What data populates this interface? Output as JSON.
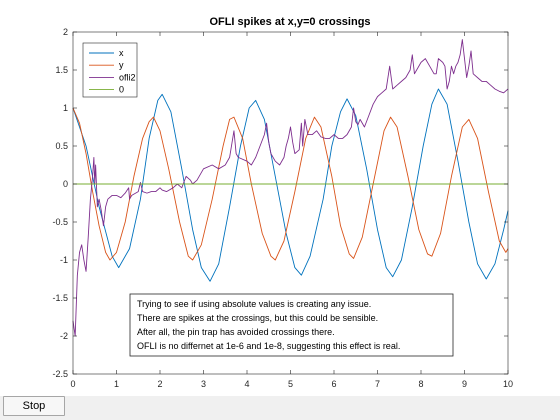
{
  "window": {
    "stop_label": "Stop"
  },
  "chart_data": {
    "type": "line",
    "title": "OFLI spikes at x,y=0 crossings",
    "xlabel": "",
    "ylabel": "",
    "xlim": [
      0,
      10
    ],
    "ylim": [
      -2.5,
      2
    ],
    "xticks": [
      0,
      1,
      2,
      3,
      4,
      5,
      6,
      7,
      8,
      9,
      10
    ],
    "yticks": [
      -2.5,
      -2,
      -1.5,
      -1,
      -0.5,
      0,
      0.5,
      1,
      1.5,
      2
    ],
    "xtick_labels": [
      "0",
      "1",
      "2",
      "3",
      "4",
      "5",
      "6",
      "7",
      "8",
      "9",
      "10"
    ],
    "ytick_labels": [
      "-2.5",
      "-2",
      "-1.5",
      "-1",
      "-0.5",
      "0",
      "0.5",
      "1",
      "1.5",
      "2"
    ],
    "grid": false,
    "legend_position": "top-left",
    "series": [
      {
        "name": "x",
        "color": "#0072bd",
        "points": [
          [
            0,
            1.0
          ],
          [
            0.3,
            0.5
          ],
          [
            0.6,
            -0.3
          ],
          [
            0.9,
            -0.95
          ],
          [
            1.05,
            -1.1
          ],
          [
            1.3,
            -0.85
          ],
          [
            1.55,
            -0.2
          ],
          [
            1.75,
            0.6
          ],
          [
            1.95,
            1.1
          ],
          [
            2.05,
            1.18
          ],
          [
            2.25,
            0.95
          ],
          [
            2.5,
            0.2
          ],
          [
            2.75,
            -0.6
          ],
          [
            2.95,
            -1.1
          ],
          [
            3.15,
            -1.28
          ],
          [
            3.35,
            -1.05
          ],
          [
            3.6,
            -0.3
          ],
          [
            3.85,
            0.5
          ],
          [
            4.05,
            1.0
          ],
          [
            4.2,
            1.1
          ],
          [
            4.4,
            0.85
          ],
          [
            4.65,
            0.1
          ],
          [
            4.9,
            -0.65
          ],
          [
            5.1,
            -1.1
          ],
          [
            5.25,
            -1.2
          ],
          [
            5.45,
            -0.95
          ],
          [
            5.75,
            -0.2
          ],
          [
            5.95,
            0.5
          ],
          [
            6.15,
            0.95
          ],
          [
            6.3,
            1.12
          ],
          [
            6.5,
            0.9
          ],
          [
            6.75,
            0.2
          ],
          [
            7.0,
            -0.6
          ],
          [
            7.2,
            -1.1
          ],
          [
            7.35,
            -1.22
          ],
          [
            7.55,
            -1.0
          ],
          [
            7.8,
            -0.3
          ],
          [
            8.05,
            0.5
          ],
          [
            8.25,
            1.05
          ],
          [
            8.4,
            1.25
          ],
          [
            8.6,
            1.05
          ],
          [
            8.85,
            0.3
          ],
          [
            9.1,
            -0.5
          ],
          [
            9.3,
            -1.05
          ],
          [
            9.5,
            -1.25
          ],
          [
            9.7,
            -1.05
          ],
          [
            9.9,
            -0.6
          ],
          [
            10,
            -0.35
          ]
        ]
      },
      {
        "name": "y",
        "color": "#d95319",
        "points": [
          [
            0,
            1.0
          ],
          [
            0.15,
            0.8
          ],
          [
            0.3,
            0.4
          ],
          [
            0.45,
            -0.1
          ],
          [
            0.6,
            -0.55
          ],
          [
            0.75,
            -0.9
          ],
          [
            0.85,
            -1.0
          ],
          [
            1.0,
            -0.9
          ],
          [
            1.2,
            -0.5
          ],
          [
            1.4,
            0.1
          ],
          [
            1.6,
            0.6
          ],
          [
            1.75,
            0.82
          ],
          [
            1.85,
            0.88
          ],
          [
            2.0,
            0.7
          ],
          [
            2.2,
            0.2
          ],
          [
            2.45,
            -0.5
          ],
          [
            2.65,
            -0.95
          ],
          [
            2.75,
            -1.0
          ],
          [
            2.95,
            -0.8
          ],
          [
            3.2,
            -0.2
          ],
          [
            3.45,
            0.5
          ],
          [
            3.6,
            0.85
          ],
          [
            3.7,
            0.88
          ],
          [
            3.9,
            0.6
          ],
          [
            4.1,
            0.0
          ],
          [
            4.35,
            -0.65
          ],
          [
            4.55,
            -0.95
          ],
          [
            4.65,
            -1.0
          ],
          [
            4.85,
            -0.75
          ],
          [
            5.1,
            -0.1
          ],
          [
            5.35,
            0.6
          ],
          [
            5.55,
            0.88
          ],
          [
            5.7,
            0.75
          ],
          [
            5.95,
            0.1
          ],
          [
            6.15,
            -0.55
          ],
          [
            6.35,
            -0.92
          ],
          [
            6.45,
            -0.98
          ],
          [
            6.65,
            -0.7
          ],
          [
            6.9,
            0.0
          ],
          [
            7.15,
            0.7
          ],
          [
            7.3,
            0.88
          ],
          [
            7.45,
            0.75
          ],
          [
            7.7,
            0.1
          ],
          [
            7.95,
            -0.6
          ],
          [
            8.15,
            -0.92
          ],
          [
            8.25,
            -0.95
          ],
          [
            8.45,
            -0.65
          ],
          [
            8.7,
            0.1
          ],
          [
            8.95,
            0.75
          ],
          [
            9.1,
            0.85
          ],
          [
            9.3,
            0.6
          ],
          [
            9.55,
            -0.1
          ],
          [
            9.8,
            -0.75
          ],
          [
            9.95,
            -0.9
          ],
          [
            10,
            -0.85
          ]
        ]
      },
      {
        "name": "ofli2",
        "color": "#7e2f8e",
        "points": [
          [
            0,
            -1.8
          ],
          [
            0.05,
            -2.0
          ],
          [
            0.1,
            -1.2
          ],
          [
            0.15,
            -0.9
          ],
          [
            0.2,
            -0.8
          ],
          [
            0.25,
            -1.0
          ],
          [
            0.3,
            -1.15
          ],
          [
            0.35,
            -0.7
          ],
          [
            0.4,
            -0.2
          ],
          [
            0.45,
            0.1
          ],
          [
            0.48,
            0.35
          ],
          [
            0.5,
            0.0
          ],
          [
            0.52,
            0.25
          ],
          [
            0.56,
            -0.3
          ],
          [
            0.6,
            -0.2
          ],
          [
            0.65,
            -0.35
          ],
          [
            0.7,
            -0.55
          ],
          [
            0.75,
            -0.3
          ],
          [
            0.8,
            -0.2
          ],
          [
            0.9,
            -0.15
          ],
          [
            1.0,
            -0.15
          ],
          [
            1.1,
            -0.18
          ],
          [
            1.2,
            -0.12
          ],
          [
            1.28,
            -0.05
          ],
          [
            1.3,
            -0.2
          ],
          [
            1.35,
            -0.15
          ],
          [
            1.5,
            -0.1
          ],
          [
            1.55,
            0.02
          ],
          [
            1.6,
            -0.1
          ],
          [
            1.7,
            -0.12
          ],
          [
            1.8,
            -0.1
          ],
          [
            1.9,
            -0.1
          ],
          [
            2.0,
            -0.05
          ],
          [
            2.05,
            -0.08
          ],
          [
            2.15,
            -0.1
          ],
          [
            2.3,
            -0.05
          ],
          [
            2.4,
            0.0
          ],
          [
            2.5,
            -0.05
          ],
          [
            2.6,
            0.1
          ],
          [
            2.7,
            0.05
          ],
          [
            2.75,
            0.0
          ],
          [
            2.85,
            0.05
          ],
          [
            3.0,
            0.2
          ],
          [
            3.2,
            0.25
          ],
          [
            3.35,
            0.2
          ],
          [
            3.5,
            0.25
          ],
          [
            3.6,
            0.35
          ],
          [
            3.7,
            0.7
          ],
          [
            3.75,
            0.4
          ],
          [
            3.8,
            0.35
          ],
          [
            4.0,
            0.3
          ],
          [
            4.1,
            0.25
          ],
          [
            4.2,
            0.35
          ],
          [
            4.3,
            0.5
          ],
          [
            4.4,
            0.65
          ],
          [
            4.45,
            0.8
          ],
          [
            4.5,
            0.55
          ],
          [
            4.55,
            0.4
          ],
          [
            4.65,
            0.3
          ],
          [
            4.75,
            0.25
          ],
          [
            4.85,
            0.35
          ],
          [
            4.9,
            0.5
          ],
          [
            4.95,
            0.6
          ],
          [
            5.0,
            0.75
          ],
          [
            5.05,
            0.55
          ],
          [
            5.1,
            0.4
          ],
          [
            5.2,
            0.45
          ],
          [
            5.25,
            0.8
          ],
          [
            5.28,
            0.5
          ],
          [
            5.33,
            0.85
          ],
          [
            5.4,
            0.65
          ],
          [
            5.5,
            0.65
          ],
          [
            5.6,
            0.7
          ],
          [
            5.7,
            0.62
          ],
          [
            5.8,
            0.6
          ],
          [
            5.9,
            0.6
          ],
          [
            6.0,
            0.65
          ],
          [
            6.1,
            0.6
          ],
          [
            6.2,
            0.6
          ],
          [
            6.3,
            0.65
          ],
          [
            6.4,
            0.75
          ],
          [
            6.45,
            1.0
          ],
          [
            6.5,
            0.82
          ],
          [
            6.55,
            0.78
          ],
          [
            6.6,
            0.85
          ],
          [
            6.7,
            0.75
          ],
          [
            6.8,
            0.9
          ],
          [
            6.9,
            1.05
          ],
          [
            7.0,
            1.15
          ],
          [
            7.1,
            1.2
          ],
          [
            7.2,
            1.25
          ],
          [
            7.28,
            1.55
          ],
          [
            7.35,
            1.25
          ],
          [
            7.45,
            1.3
          ],
          [
            7.55,
            1.35
          ],
          [
            7.65,
            1.4
          ],
          [
            7.75,
            1.5
          ],
          [
            7.8,
            1.7
          ],
          [
            7.85,
            1.45
          ],
          [
            7.9,
            1.5
          ],
          [
            8.0,
            1.6
          ],
          [
            8.1,
            1.65
          ],
          [
            8.2,
            1.55
          ],
          [
            8.3,
            1.45
          ],
          [
            8.35,
            1.45
          ],
          [
            8.4,
            1.65
          ],
          [
            8.5,
            1.6
          ],
          [
            8.55,
            1.55
          ],
          [
            8.6,
            1.25
          ],
          [
            8.65,
            1.35
          ],
          [
            8.7,
            1.55
          ],
          [
            8.75,
            1.45
          ],
          [
            8.8,
            1.55
          ],
          [
            8.85,
            1.6
          ],
          [
            8.9,
            1.7
          ],
          [
            8.95,
            1.9
          ],
          [
            9.0,
            1.65
          ],
          [
            9.05,
            1.4
          ],
          [
            9.1,
            1.55
          ],
          [
            9.15,
            1.75
          ],
          [
            9.2,
            1.45
          ],
          [
            9.3,
            1.4
          ],
          [
            9.4,
            1.35
          ],
          [
            9.5,
            1.35
          ],
          [
            9.6,
            1.3
          ],
          [
            9.7,
            1.25
          ],
          [
            9.8,
            1.22
          ],
          [
            9.9,
            1.2
          ],
          [
            10,
            1.25
          ]
        ]
      },
      {
        "name": "0",
        "color": "#77ac30",
        "points": [
          [
            0,
            0
          ],
          [
            10,
            0
          ]
        ]
      }
    ],
    "annotation": {
      "lines": [
        "Trying to see if using absolute values is creating any issue.",
        "There are spikes at the crossings, but this could be sensible.",
        "After all, the pin trap has avoided crossings there.",
        "OFLI is no differnet at 1e-6 and 1e-8, suggesting this effect is real."
      ]
    }
  }
}
